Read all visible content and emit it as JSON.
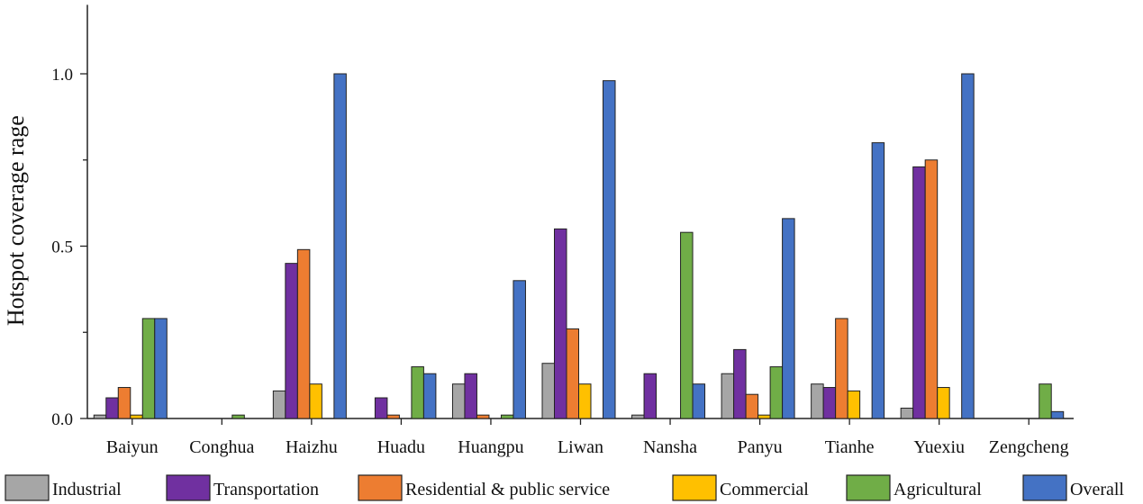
{
  "chart_data": {
    "type": "bar",
    "ylabel": "Hotspot coverage rage",
    "xlabel": "",
    "ylim": [
      0,
      1.2
    ],
    "yticks": [
      0.0,
      0.5,
      1.0
    ],
    "ytick_labels": [
      "0.0",
      "0.5",
      "1.0"
    ],
    "grid": false,
    "legend_position": "bottom",
    "categories": [
      "Baiyun",
      "Conghua",
      "Haizhu",
      "Huadu",
      "Huangpu",
      "Liwan",
      "Nansha",
      "Panyu",
      "Tianhe",
      "Yuexiu",
      "Zengcheng"
    ],
    "series": [
      {
        "name": "Industrial",
        "color": "#a6a6a6",
        "values": [
          0.01,
          0.0,
          0.08,
          0.0,
          0.1,
          0.16,
          0.01,
          0.13,
          0.1,
          0.03,
          0.0
        ]
      },
      {
        "name": "Transportation",
        "color": "#7030a0",
        "values": [
          0.06,
          0.0,
          0.45,
          0.06,
          0.13,
          0.55,
          0.13,
          0.2,
          0.09,
          0.73,
          0.0
        ]
      },
      {
        "name": "Residential & public service",
        "color": "#ed7d31",
        "values": [
          0.09,
          0.0,
          0.49,
          0.01,
          0.01,
          0.26,
          0.0,
          0.07,
          0.29,
          0.75,
          0.0
        ]
      },
      {
        "name": "Commercial",
        "color": "#ffc000",
        "values": [
          0.01,
          0.0,
          0.1,
          0.0,
          0.0,
          0.1,
          0.0,
          0.01,
          0.08,
          0.09,
          0.0
        ]
      },
      {
        "name": "Agricultural",
        "color": "#70ad47",
        "values": [
          0.29,
          0.01,
          0.0,
          0.15,
          0.01,
          0.0,
          0.54,
          0.15,
          0.0,
          0.0,
          0.1
        ]
      },
      {
        "name": "Overall",
        "color": "#4472c4",
        "values": [
          0.29,
          0.0,
          1.0,
          0.13,
          0.4,
          0.98,
          0.1,
          0.58,
          0.8,
          1.0,
          0.02
        ]
      }
    ]
  }
}
